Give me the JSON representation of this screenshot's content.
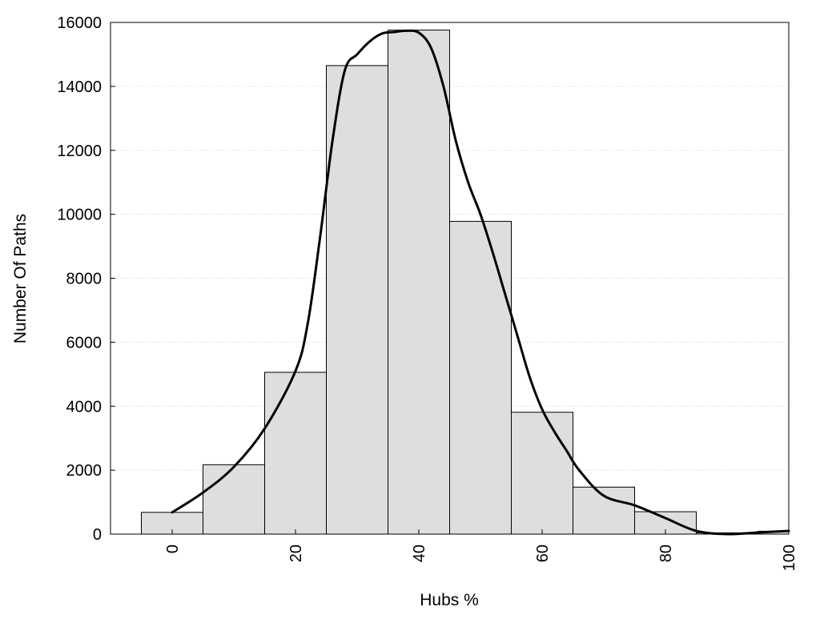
{
  "chart_data": {
    "type": "bar",
    "title": "",
    "xlabel": "Hubs %",
    "ylabel": "Number Of Paths",
    "xlim": [
      -10,
      100
    ],
    "ylim": [
      0,
      16000
    ],
    "x_ticks": [
      0,
      20,
      40,
      60,
      80,
      100
    ],
    "y_ticks": [
      0,
      2000,
      4000,
      6000,
      8000,
      10000,
      12000,
      14000,
      16000
    ],
    "grid": "horizontal dotted",
    "legend": "none",
    "bin_width": 10,
    "bins": [
      {
        "center": 0,
        "value": 680
      },
      {
        "center": 10,
        "value": 2170
      },
      {
        "center": 20,
        "value": 5060
      },
      {
        "center": 30,
        "value": 14650
      },
      {
        "center": 40,
        "value": 15760
      },
      {
        "center": 50,
        "value": 9780
      },
      {
        "center": 60,
        "value": 3810
      },
      {
        "center": 70,
        "value": 1470
      },
      {
        "center": 80,
        "value": 700
      },
      {
        "center": 90,
        "value": 40
      },
      {
        "center": 100,
        "value": 90
      }
    ],
    "density_curve": {
      "x": [
        0,
        5,
        10,
        15,
        20,
        22,
        24,
        26,
        28,
        30,
        32,
        34,
        36,
        38,
        40,
        42,
        44,
        46,
        48,
        50,
        52,
        54,
        56,
        58,
        60,
        62,
        64,
        66,
        70,
        75,
        80,
        85,
        90,
        95,
        100
      ],
      "y": [
        680,
        1300,
        2100,
        3300,
        5100,
        6600,
        9300,
        12300,
        14500,
        15000,
        15400,
        15650,
        15700,
        15740,
        15680,
        15200,
        14000,
        12300,
        11000,
        10000,
        8800,
        7500,
        6200,
        4900,
        3900,
        3200,
        2600,
        2000,
        1200,
        900,
        500,
        100,
        0,
        50,
        100
      ]
    },
    "colors": {
      "bar_fill": "#dedede",
      "bar_stroke": "#000000",
      "curve": "#000000",
      "grid": "#c8c8c8"
    }
  }
}
